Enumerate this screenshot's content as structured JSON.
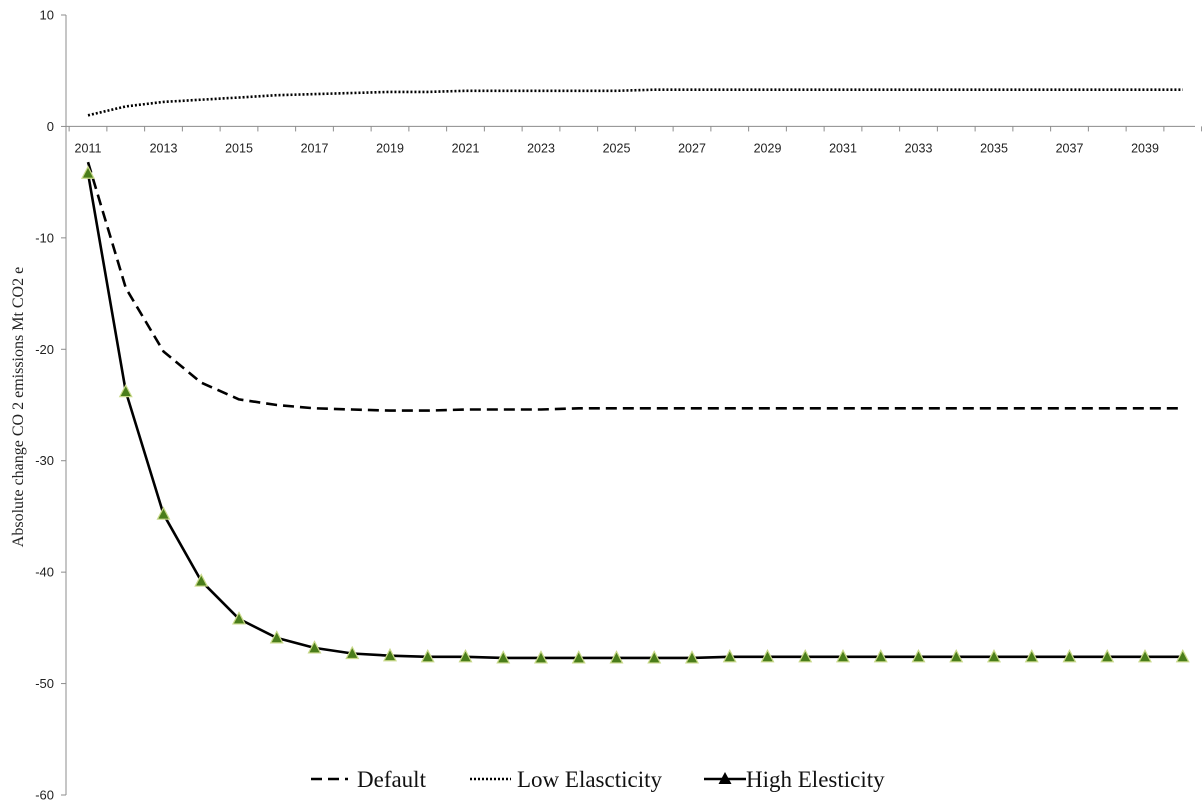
{
  "chart_data": {
    "type": "line",
    "title": "",
    "xlabel": "",
    "ylabel": "Absolute change CO 2 emissions Mt CO2 e",
    "ylim": [
      -60,
      10
    ],
    "y_ticks": [
      10,
      0,
      -10,
      -20,
      -30,
      -40,
      -50,
      -60
    ],
    "x": [
      2011,
      2012,
      2013,
      2014,
      2015,
      2016,
      2017,
      2018,
      2019,
      2020,
      2021,
      2022,
      2023,
      2024,
      2025,
      2026,
      2027,
      2028,
      2029,
      2030,
      2031,
      2032,
      2033,
      2034,
      2035,
      2036,
      2037,
      2038,
      2039,
      2040
    ],
    "x_tick_labels": [
      "2011",
      "2013",
      "2015",
      "2017",
      "2019",
      "2021",
      "2023",
      "2025",
      "2027",
      "2029",
      "2031",
      "2033",
      "2035",
      "2037",
      "2039"
    ],
    "grid": false,
    "legend_position": "bottom",
    "series": [
      {
        "name": "Default",
        "style": "dashed",
        "color": "#000000",
        "values": [
          -3.2,
          -14.5,
          -20.2,
          -23.0,
          -24.5,
          -25.0,
          -25.3,
          -25.4,
          -25.5,
          -25.5,
          -25.4,
          -25.4,
          -25.4,
          -25.3,
          -25.3,
          -25.3,
          -25.3,
          -25.3,
          -25.3,
          -25.3,
          -25.3,
          -25.3,
          -25.3,
          -25.3,
          -25.3,
          -25.3,
          -25.3,
          -25.3,
          -25.3,
          -25.3
        ]
      },
      {
        "name": "Low Elascticity",
        "style": "dotted",
        "color": "#000000",
        "values": [
          1.0,
          1.8,
          2.2,
          2.4,
          2.6,
          2.8,
          2.9,
          3.0,
          3.1,
          3.1,
          3.2,
          3.2,
          3.2,
          3.2,
          3.2,
          3.3,
          3.3,
          3.3,
          3.3,
          3.3,
          3.3,
          3.3,
          3.3,
          3.3,
          3.3,
          3.3,
          3.3,
          3.3,
          3.3,
          3.3
        ]
      },
      {
        "name": "High Elesticity",
        "style": "solid-triangle-markers",
        "color": "#000000",
        "marker_fill": "#4a7d1a",
        "values": [
          -4.2,
          -23.8,
          -34.8,
          -40.8,
          -44.2,
          -45.9,
          -46.8,
          -47.3,
          -47.5,
          -47.6,
          -47.6,
          -47.7,
          -47.7,
          -47.7,
          -47.7,
          -47.7,
          -47.7,
          -47.6,
          -47.6,
          -47.6,
          -47.6,
          -47.6,
          -47.6,
          -47.6,
          -47.6,
          -47.6,
          -47.6,
          -47.6,
          -47.6,
          -47.6
        ]
      }
    ]
  }
}
